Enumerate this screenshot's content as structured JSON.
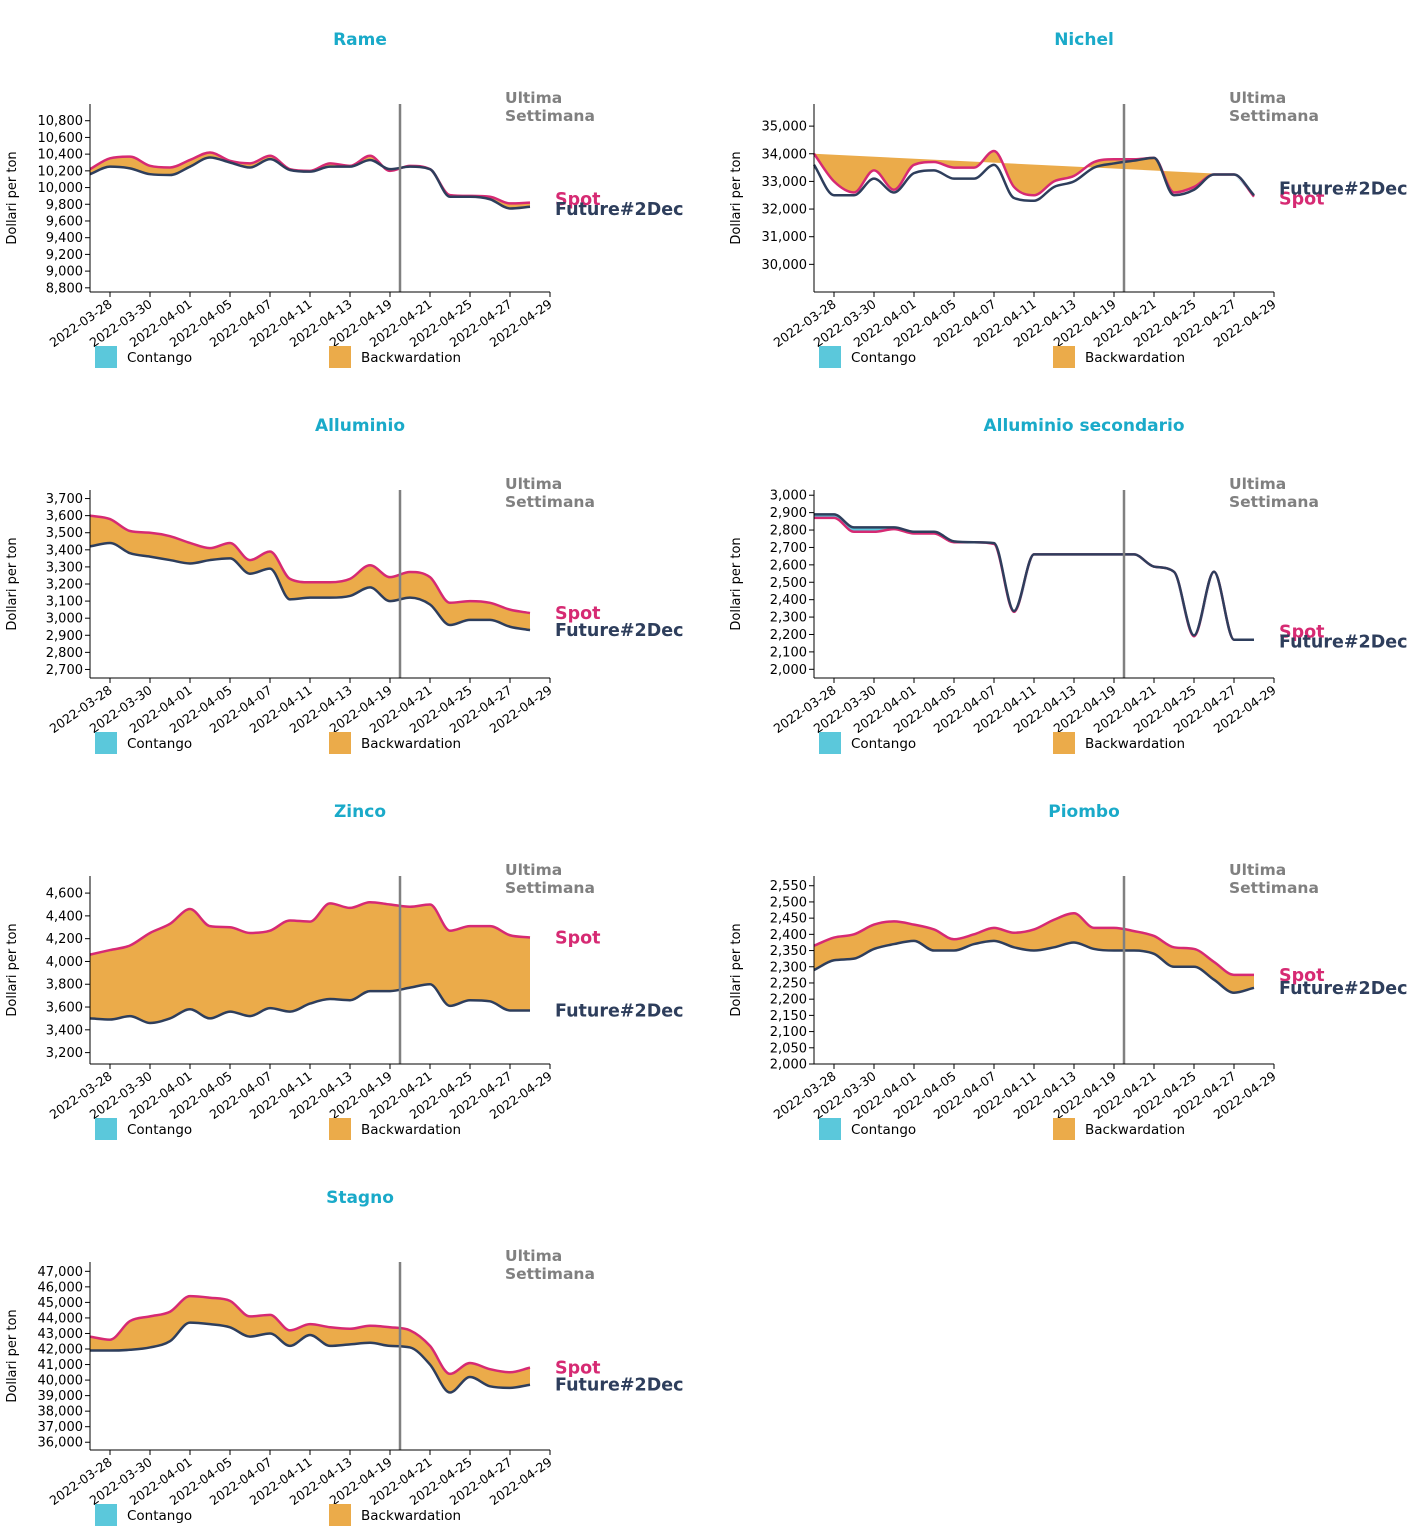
{
  "colors": {
    "title": "#1aaac9",
    "spot": "#d62a73",
    "future": "#2e3e5c",
    "contango": "#5bc8db",
    "backwardation": "#ebab4a",
    "week_line": "#808080",
    "week_label": "#808080",
    "axis": "#000000"
  },
  "labels": {
    "ylabel": "Dollari per ton",
    "week": [
      "Ultima",
      "Settimana"
    ],
    "spot": "Spot",
    "future": "Future#2Dec",
    "legend_contango": "Contango",
    "legend_backwardation": "Backwardation"
  },
  "chart_data": [
    {
      "type": "area",
      "title": "Rame",
      "ylabel": "Dollari per ton",
      "ylim": [
        8750,
        11000
      ],
      "yticks": [
        8800,
        9000,
        9200,
        9400,
        9600,
        9800,
        10000,
        10200,
        10400,
        10600,
        10800
      ],
      "xticks": [
        "2022-03-28",
        "2022-03-30",
        "2022-04-01",
        "2022-04-05",
        "2022-04-07",
        "2022-04-11",
        "2022-04-13",
        "2022-04-19",
        "2022-04-21",
        "2022-04-25",
        "2022-04-27",
        "2022-04-29"
      ],
      "x": [
        0,
        0.5,
        1,
        1.5,
        2,
        2.5,
        3,
        3.5,
        4,
        4.5,
        5,
        5.5,
        6,
        6.5,
        7,
        7.5,
        8,
        8.5,
        9,
        9.5,
        10,
        10.5,
        11
      ],
      "last_week_x": 7.75,
      "series": [
        {
          "name": "Spot",
          "values": [
            10220,
            10350,
            10370,
            10260,
            10240,
            10330,
            10420,
            10320,
            10290,
            10380,
            10220,
            10200,
            10290,
            10260,
            10380,
            10200,
            10260,
            10220,
            9910,
            9900,
            9890,
            9810,
            9820
          ]
        },
        {
          "name": "Future#2Dec",
          "values": [
            10160,
            10250,
            10230,
            10160,
            10150,
            10250,
            10360,
            10300,
            10240,
            10340,
            10210,
            10190,
            10250,
            10250,
            10330,
            10220,
            10250,
            10220,
            9890,
            9890,
            9860,
            9750,
            9770
          ]
        }
      ]
    },
    {
      "type": "area",
      "title": "Nichel",
      "ylabel": "Dollari per ton",
      "ylim": [
        29000,
        35800
      ],
      "yticks": [
        30000,
        31000,
        32000,
        33000,
        34000,
        35000
      ],
      "xticks": [
        "2022-03-28",
        "2022-03-30",
        "2022-04-01",
        "2022-04-05",
        "2022-04-07",
        "2022-04-11",
        "2022-04-13",
        "2022-04-19",
        "2022-04-21",
        "2022-04-25",
        "2022-04-27",
        "2022-04-29"
      ],
      "x": [
        0,
        0.5,
        1,
        1.5,
        2,
        2.5,
        3,
        3.5,
        4,
        4.5,
        5,
        5.5,
        6,
        6.5,
        7,
        7.5,
        8,
        8.5,
        9,
        9.5,
        10,
        10.5,
        11
      ],
      "last_week_x": 7.75,
      "series": [
        {
          "name": "Spot",
          "values": [
            34000,
            33000,
            32600,
            33400,
            32700,
            33600,
            33700,
            33500,
            33500,
            34100,
            32800,
            32500,
            33000,
            33200,
            33700,
            33800,
            33800,
            33850,
            32600,
            32800,
            33250,
            33250,
            32450
          ]
        },
        {
          "name": "Future#2Dec",
          "values": [
            33600,
            32500,
            32500,
            33100,
            32600,
            33300,
            33400,
            33100,
            33100,
            33600,
            32400,
            32300,
            32800,
            33000,
            33500,
            33650,
            33750,
            33850,
            32500,
            32700,
            33250,
            33250,
            32500
          ]
        }
      ]
    },
    {
      "type": "area",
      "title": "Alluminio",
      "ylabel": "Dollari per ton",
      "ylim": [
        2650,
        3750
      ],
      "yticks": [
        2700,
        2800,
        2900,
        3000,
        3100,
        3200,
        3300,
        3400,
        3500,
        3600,
        3700
      ],
      "xticks": [
        "2022-03-28",
        "2022-03-30",
        "2022-04-01",
        "2022-04-05",
        "2022-04-07",
        "2022-04-11",
        "2022-04-13",
        "2022-04-19",
        "2022-04-21",
        "2022-04-25",
        "2022-04-27",
        "2022-04-29"
      ],
      "x": [
        0,
        0.5,
        1,
        1.5,
        2,
        2.5,
        3,
        3.5,
        4,
        4.5,
        5,
        5.5,
        6,
        6.5,
        7,
        7.5,
        8,
        8.5,
        9,
        9.5,
        10,
        10.5,
        11
      ],
      "last_week_x": 7.75,
      "series": [
        {
          "name": "Spot",
          "values": [
            3600,
            3580,
            3510,
            3500,
            3480,
            3440,
            3410,
            3440,
            3340,
            3390,
            3230,
            3210,
            3210,
            3230,
            3310,
            3240,
            3270,
            3240,
            3090,
            3100,
            3090,
            3050,
            3030
          ]
        },
        {
          "name": "Future#2Dec",
          "values": [
            3420,
            3440,
            3380,
            3360,
            3340,
            3320,
            3340,
            3350,
            3260,
            3290,
            3110,
            3120,
            3120,
            3130,
            3180,
            3100,
            3120,
            3080,
            2960,
            2990,
            2990,
            2950,
            2930
          ]
        }
      ]
    },
    {
      "type": "area",
      "title": "Alluminio secondario",
      "ylabel": "Dollari per ton",
      "ylim": [
        1950,
        3030
      ],
      "yticks": [
        2000,
        2100,
        2200,
        2300,
        2400,
        2500,
        2600,
        2700,
        2800,
        2900,
        3000
      ],
      "xticks": [
        "2022-03-28",
        "2022-03-30",
        "2022-04-01",
        "2022-04-05",
        "2022-04-07",
        "2022-04-11",
        "2022-04-13",
        "2022-04-19",
        "2022-04-21",
        "2022-04-25",
        "2022-04-27",
        "2022-04-29"
      ],
      "x": [
        0,
        0.5,
        1,
        1.5,
        2,
        2.5,
        3,
        3.5,
        4,
        4.5,
        5,
        5.5,
        6,
        6.5,
        7,
        7.5,
        8,
        8.5,
        9,
        9.5,
        10,
        10.5,
        11
      ],
      "last_week_x": 7.75,
      "series": [
        {
          "name": "Spot",
          "values": [
            2870,
            2870,
            2790,
            2790,
            2805,
            2780,
            2780,
            2730,
            2730,
            2720,
            2330,
            2660,
            2660,
            2660,
            2660,
            2660,
            2660,
            2590,
            2560,
            2190,
            2560,
            2170,
            2170
          ]
        },
        {
          "name": "Future#2Dec",
          "values": [
            2890,
            2890,
            2815,
            2815,
            2815,
            2790,
            2790,
            2735,
            2730,
            2725,
            2335,
            2660,
            2660,
            2660,
            2660,
            2660,
            2660,
            2590,
            2560,
            2195,
            2560,
            2170,
            2170
          ]
        }
      ]
    },
    {
      "type": "area",
      "title": "Zinco",
      "ylabel": "Dollari per ton",
      "ylim": [
        3100,
        4750
      ],
      "yticks": [
        3200,
        3400,
        3600,
        3800,
        4000,
        4200,
        4400,
        4600
      ],
      "xticks": [
        "2022-03-28",
        "2022-03-30",
        "2022-04-01",
        "2022-04-05",
        "2022-04-07",
        "2022-04-11",
        "2022-04-13",
        "2022-04-19",
        "2022-04-21",
        "2022-04-25",
        "2022-04-27",
        "2022-04-29"
      ],
      "x": [
        0,
        0.5,
        1,
        1.5,
        2,
        2.5,
        3,
        3.5,
        4,
        4.5,
        5,
        5.5,
        6,
        6.5,
        7,
        7.5,
        8,
        8.5,
        9,
        9.5,
        10,
        10.5,
        11
      ],
      "last_week_x": 7.75,
      "series": [
        {
          "name": "Spot",
          "values": [
            4060,
            4100,
            4140,
            4250,
            4330,
            4460,
            4310,
            4300,
            4250,
            4270,
            4360,
            4350,
            4510,
            4470,
            4520,
            4500,
            4480,
            4500,
            4270,
            4310,
            4310,
            4230,
            4210
          ]
        },
        {
          "name": "Future#2Dec",
          "values": [
            3500,
            3490,
            3520,
            3460,
            3500,
            3580,
            3500,
            3560,
            3520,
            3590,
            3560,
            3630,
            3670,
            3660,
            3740,
            3740,
            3770,
            3800,
            3610,
            3660,
            3650,
            3570,
            3570
          ]
        }
      ]
    },
    {
      "type": "area",
      "title": "Piombo",
      "ylabel": "Dollari per ton",
      "ylim": [
        2000,
        2580
      ],
      "yticks": [
        2000,
        2050,
        2100,
        2150,
        2200,
        2250,
        2300,
        2350,
        2400,
        2450,
        2500,
        2550
      ],
      "xticks": [
        "2022-03-28",
        "2022-03-30",
        "2022-04-01",
        "2022-04-05",
        "2022-04-07",
        "2022-04-11",
        "2022-04-13",
        "2022-04-19",
        "2022-04-21",
        "2022-04-25",
        "2022-04-27",
        "2022-04-29"
      ],
      "x": [
        0,
        0.5,
        1,
        1.5,
        2,
        2.5,
        3,
        3.5,
        4,
        4.5,
        5,
        5.5,
        6,
        6.5,
        7,
        7.5,
        8,
        8.5,
        9,
        9.5,
        10,
        10.5,
        11
      ],
      "last_week_x": 7.75,
      "series": [
        {
          "name": "Spot",
          "values": [
            2365,
            2390,
            2400,
            2430,
            2440,
            2430,
            2415,
            2385,
            2400,
            2420,
            2405,
            2415,
            2445,
            2465,
            2420,
            2420,
            2410,
            2395,
            2360,
            2355,
            2315,
            2275,
            2275
          ]
        },
        {
          "name": "Future#2Dec",
          "values": [
            2290,
            2320,
            2325,
            2355,
            2370,
            2380,
            2350,
            2350,
            2370,
            2380,
            2360,
            2350,
            2360,
            2375,
            2355,
            2350,
            2350,
            2340,
            2300,
            2300,
            2260,
            2220,
            2235
          ]
        }
      ]
    },
    {
      "type": "area",
      "title": "Stagno",
      "ylabel": "Dollari per ton",
      "ylim": [
        35500,
        47600
      ],
      "yticks": [
        36000,
        37000,
        38000,
        39000,
        40000,
        41000,
        42000,
        43000,
        44000,
        45000,
        46000,
        47000
      ],
      "xticks": [
        "2022-03-28",
        "2022-03-30",
        "2022-04-01",
        "2022-04-05",
        "2022-04-07",
        "2022-04-11",
        "2022-04-13",
        "2022-04-19",
        "2022-04-21",
        "2022-04-25",
        "2022-04-27",
        "2022-04-29"
      ],
      "x": [
        0,
        0.5,
        1,
        1.5,
        2,
        2.5,
        3,
        3.5,
        4,
        4.5,
        5,
        5.5,
        6,
        6.5,
        7,
        7.5,
        8,
        8.5,
        9,
        9.5,
        10,
        10.5,
        11
      ],
      "last_week_x": 7.75,
      "series": [
        {
          "name": "Spot",
          "values": [
            42800,
            42600,
            43800,
            44100,
            44400,
            45400,
            45300,
            45100,
            44100,
            44200,
            43200,
            43600,
            43400,
            43300,
            43500,
            43400,
            43200,
            42200,
            40400,
            41100,
            40700,
            40500,
            40800
          ]
        },
        {
          "name": "Future#2Dec",
          "values": [
            41900,
            41900,
            41950,
            42100,
            42500,
            43700,
            43600,
            43400,
            42800,
            43000,
            42200,
            42900,
            42200,
            42300,
            42400,
            42200,
            42100,
            41000,
            39200,
            40200,
            39600,
            39500,
            39700
          ]
        }
      ]
    }
  ]
}
